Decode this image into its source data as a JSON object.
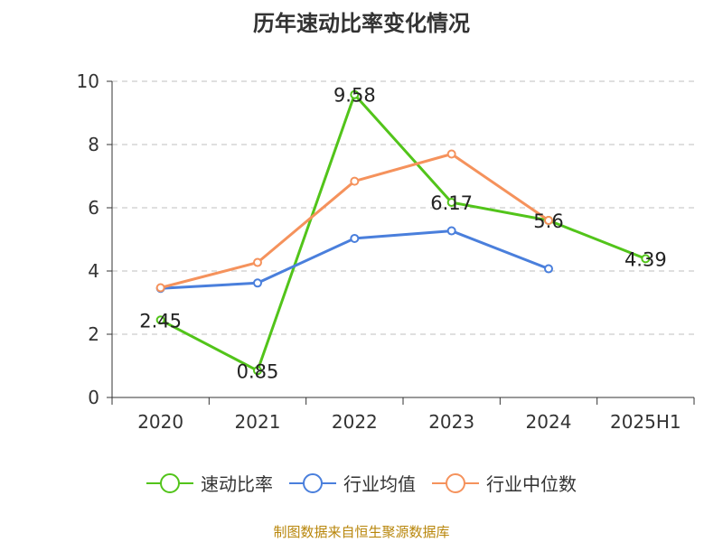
{
  "chart_data": {
    "type": "line",
    "title": "历年速动比率变化情况",
    "categories": [
      "2020",
      "2021",
      "2022",
      "2023",
      "2024",
      "2025H1"
    ],
    "ylim": [
      0,
      10
    ],
    "yticks": [
      0,
      2,
      4,
      6,
      8,
      10
    ],
    "grid": true,
    "legend_position": "bottom",
    "series": [
      {
        "name": "速动比率",
        "color": "#52c41a",
        "values": [
          2.45,
          0.85,
          9.58,
          6.17,
          5.6,
          4.39
        ],
        "show_labels": true
      },
      {
        "name": "行业均值",
        "color": "#4a7fdc",
        "values": [
          3.45,
          3.62,
          5.03,
          5.27,
          4.07,
          null
        ],
        "show_labels": false
      },
      {
        "name": "行业中位数",
        "color": "#f5925c",
        "values": [
          3.47,
          4.27,
          6.84,
          7.7,
          5.6,
          null
        ],
        "show_labels": false
      }
    ],
    "source": "制图数据来自恒生聚源数据库"
  }
}
